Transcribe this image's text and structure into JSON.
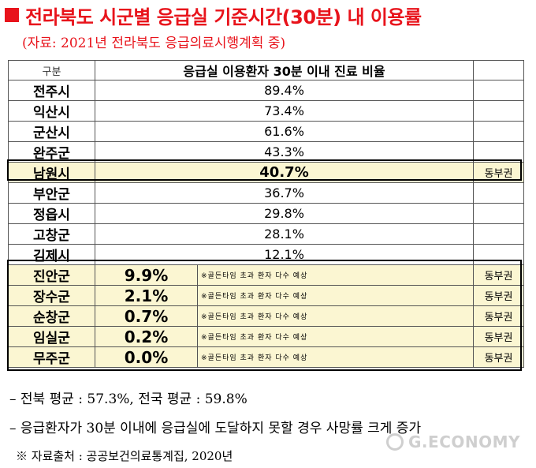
{
  "title": "전라북도 시군별 응급실 기준시간(30분) 내 이용률",
  "subtitle": "(자료: 2021년 전라북도 응급의료시행계획 중)",
  "table": {
    "headers": {
      "gubun": "구분",
      "main": "응급실 이용환자 30분 이내 진료 비율"
    },
    "rows_top": [
      {
        "region": "전주시",
        "value": "89.4%",
        "tag": ""
      },
      {
        "region": "익산시",
        "value": "73.4%",
        "tag": ""
      },
      {
        "region": "군산시",
        "value": "61.6%",
        "tag": ""
      },
      {
        "region": "완주군",
        "value": "43.3%",
        "tag": ""
      }
    ],
    "row_namwon": {
      "region": "남원시",
      "value": "40.7%",
      "tag": "동부권"
    },
    "rows_mid": [
      {
        "region": "부안군",
        "value": "36.7%",
        "tag": ""
      },
      {
        "region": "정읍시",
        "value": "29.8%",
        "tag": ""
      },
      {
        "region": "고창군",
        "value": "28.1%",
        "tag": ""
      },
      {
        "region": "김제시",
        "value": "12.1%",
        "tag": ""
      }
    ],
    "rows_bottom": [
      {
        "region": "진안군",
        "value": "9.9%",
        "note": "※골든타임 초과 환자 다수 예상",
        "tag": "동부권"
      },
      {
        "region": "장수군",
        "value": "2.1%",
        "note": "※골든타임 초과 환자 다수 예상",
        "tag": "동부권"
      },
      {
        "region": "순창군",
        "value": "0.7%",
        "note": "※골든타임 초과 환자 다수 예상",
        "tag": "동부권"
      },
      {
        "region": "임실군",
        "value": "0.2%",
        "note": "※골든타임 초과 환자 다수 예상",
        "tag": "동부권"
      },
      {
        "region": "무주군",
        "value": "0.0%",
        "note": "※골든타임 초과 환자 다수 예상",
        "tag": "동부권"
      }
    ]
  },
  "footer": {
    "line1": "– 전북 평균 : 57.3%, 전국 평균 : 59.8%",
    "line2": "– 응급환자가 30분 이내에 응급실에 도달하지 못할 경우 사망률 크게 증가",
    "line3": "※  자료출처 : 공공보건의료통계집, 2020년"
  },
  "watermark": "G.ECONOMY",
  "colors": {
    "title": "#e8131b",
    "highlight": "#fbf6d2"
  }
}
